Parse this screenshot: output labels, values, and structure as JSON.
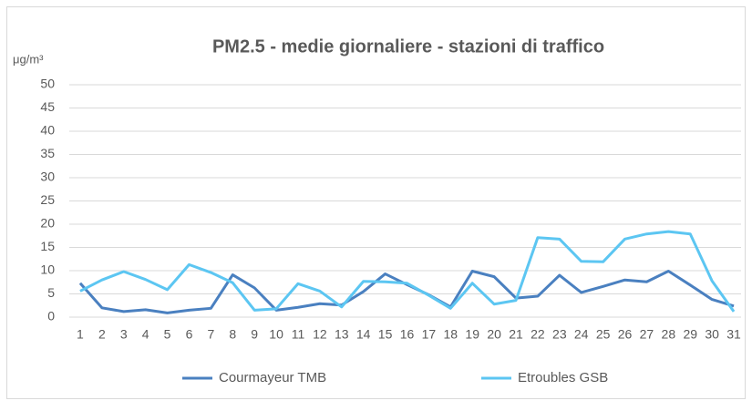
{
  "chart_data": {
    "type": "line",
    "title": "PM2.5 - medie giornaliere - stazioni di traffico",
    "y_unit": "μg/m³",
    "categories": [
      "1",
      "2",
      "3",
      "4",
      "5",
      "6",
      "7",
      "8",
      "9",
      "10",
      "11",
      "12",
      "13",
      "14",
      "15",
      "16",
      "17",
      "18",
      "19",
      "20",
      "21",
      "22",
      "23",
      "24",
      "25",
      "26",
      "27",
      "28",
      "29",
      "30",
      "31"
    ],
    "series": [
      {
        "name": "Courmayeur TMB",
        "color": "#4a80c0",
        "values": [
          7.3,
          2.0,
          1.2,
          1.6,
          0.9,
          1.5,
          1.9,
          9.1,
          6.3,
          1.5,
          2.1,
          2.9,
          2.6,
          5.5,
          9.3,
          7.0,
          4.8,
          2.2,
          9.9,
          8.7,
          4.1,
          4.5,
          9.0,
          5.3,
          6.6,
          8.0,
          7.6,
          9.9,
          6.9,
          3.8,
          2.4
        ]
      },
      {
        "name": "Etroubles GSB",
        "color": "#5cc6f2",
        "values": [
          5.6,
          8.0,
          9.8,
          8.1,
          5.9,
          11.3,
          9.6,
          7.4,
          1.5,
          1.8,
          7.2,
          5.6,
          2.2,
          7.7,
          7.6,
          7.3,
          4.7,
          1.9,
          7.3,
          2.8,
          3.6,
          17.1,
          16.8,
          12.0,
          11.9,
          16.8,
          17.9,
          18.4,
          17.9,
          7.8,
          1.2
        ]
      }
    ],
    "ylim": [
      0,
      50
    ],
    "yticks": [
      0,
      5,
      10,
      15,
      20,
      25,
      30,
      35,
      40,
      45,
      50
    ],
    "grid": true,
    "legend": "bottom"
  }
}
